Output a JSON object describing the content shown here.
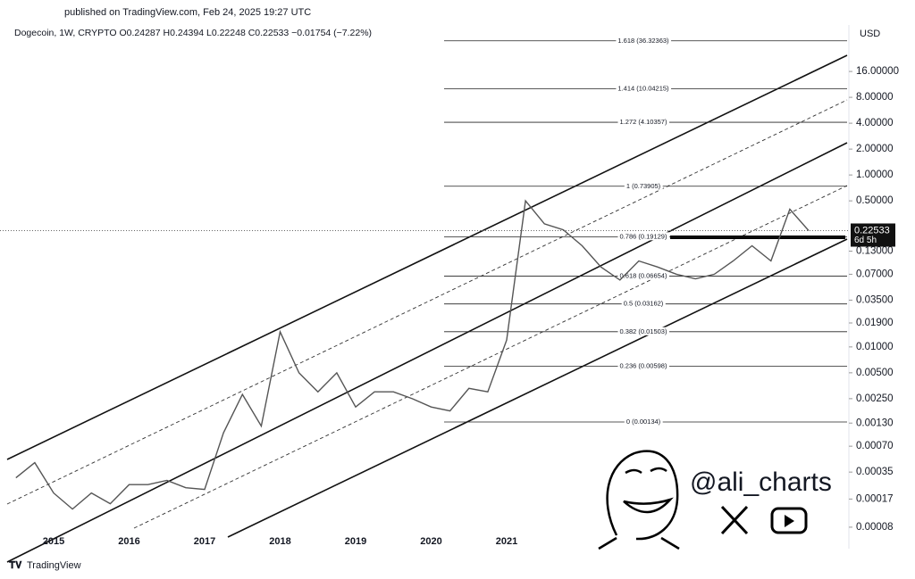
{
  "header": {
    "published": "published on TradingView.com, Feb 24, 2025 19:27 UTC",
    "symbol": "Dogecoin, 1W, CRYPTO O0.24287 H0.24394 L0.22248 C0.22533 −0.01754 (−7.22%)"
  },
  "chart_data": {
    "type": "line",
    "log_scale": true,
    "grid": false,
    "color": "#555555",
    "currency": "USD",
    "categories": [
      null,
      null,
      "2015",
      null,
      null,
      null,
      "2016",
      null,
      null,
      null,
      "2017",
      null,
      null,
      null,
      "2018",
      null,
      null,
      null,
      "2019",
      null,
      null,
      null,
      "2020",
      null,
      null,
      null,
      "2021",
      null,
      null,
      null,
      null,
      null,
      null,
      null,
      null,
      null,
      null,
      null,
      null,
      null,
      null,
      null,
      null,
      null
    ],
    "values": [
      0.0003,
      0.00045,
      0.0002,
      0.00013,
      0.0002,
      0.00015,
      0.00025,
      0.00025,
      0.00028,
      0.00023,
      0.00022,
      0.001,
      0.0028,
      0.0012,
      0.015,
      0.005,
      0.003,
      0.005,
      0.002,
      0.003,
      0.003,
      0.0025,
      0.002,
      0.0018,
      0.0033,
      0.003,
      0.012,
      0.5,
      0.27,
      0.23,
      0.15,
      0.085,
      0.06,
      0.1,
      0.085,
      0.07,
      0.062,
      0.07,
      0.1,
      0.15,
      0.1,
      0.4,
      0.22533,
      null
    ],
    "ylim": [
      4.5e-05,
      47
    ],
    "yticks": [
      {
        "value": 16,
        "label": "16.00000"
      },
      {
        "value": 8,
        "label": "8.00000"
      },
      {
        "value": 4,
        "label": "4.00000"
      },
      {
        "value": 2,
        "label": "2.00000"
      },
      {
        "value": 1,
        "label": "1.00000"
      },
      {
        "value": 0.5,
        "label": "0.50000"
      },
      {
        "value": 0.13,
        "label": "0.13000"
      },
      {
        "value": 0.07,
        "label": "0.07000"
      },
      {
        "value": 0.035,
        "label": "0.03500"
      },
      {
        "value": 0.019,
        "label": "0.01900"
      },
      {
        "value": 0.01,
        "label": "0.01000"
      },
      {
        "value": 0.005,
        "label": "0.00500"
      },
      {
        "value": 0.0025,
        "label": "0.00250"
      },
      {
        "value": 0.0013,
        "label": "0.00130"
      },
      {
        "value": 0.0007,
        "label": "0.00070"
      },
      {
        "value": 0.00035,
        "label": "0.00035"
      },
      {
        "value": 0.00017,
        "label": "0.00017"
      },
      {
        "value": 8e-05,
        "label": "0.00008"
      }
    ],
    "fib_levels": [
      {
        "value": 36.32363,
        "label": "1.618 (36.32363)"
      },
      {
        "value": 10.04215,
        "label": "1.414 (10.04215)"
      },
      {
        "value": 4.10357,
        "label": "1.272 (4.10357)"
      },
      {
        "value": 0.73905,
        "label": "1 (0.73905)"
      },
      {
        "value": 0.19129,
        "label": "0.786 (0.19129)"
      },
      {
        "value": 0.06654,
        "label": "0.618 (0.06654)"
      },
      {
        "value": 0.03162,
        "label": "0.5 (0.03162)"
      },
      {
        "value": 0.01503,
        "label": "0.382 (0.01503)"
      },
      {
        "value": 0.00598,
        "label": "0.236 (0.00598)"
      },
      {
        "value": 0.00134,
        "label": "0 (0.00134)"
      }
    ],
    "last_price": 0.22533,
    "countdown": "6d 5h"
  },
  "watermark": {
    "handle": "@ali_charts",
    "brand": "TradingView"
  }
}
